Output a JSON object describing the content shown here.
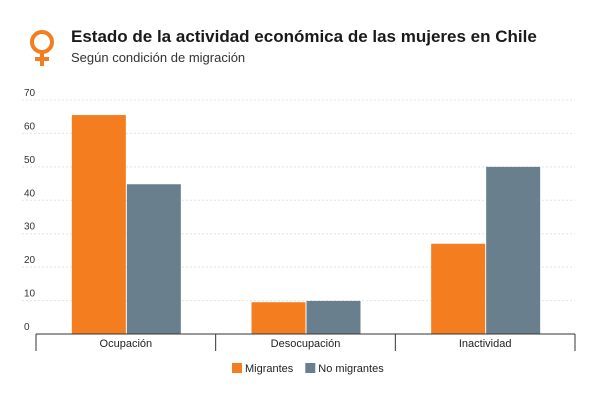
{
  "header": {
    "title": "Estado de la actividad económica de las mujeres en Chile",
    "subtitle": "Según condición de migración",
    "icon": "female-symbol-icon",
    "icon_color": "#f47d20"
  },
  "chart_data": {
    "type": "bar",
    "categories": [
      "Ocupación",
      "Desocupación",
      "Inactividad"
    ],
    "series": [
      {
        "name": "Migrantes",
        "values": [
          65.5,
          9.5,
          27.0
        ],
        "color": "#f47d20"
      },
      {
        "name": "No migrantes",
        "values": [
          44.8,
          9.9,
          50.0
        ],
        "color": "#6a7f8e"
      }
    ],
    "yticks": [
      0,
      10,
      20,
      30,
      40,
      50,
      60,
      70
    ],
    "ylim": [
      0,
      70
    ],
    "grid": true,
    "legend_position": "bottom-center"
  }
}
